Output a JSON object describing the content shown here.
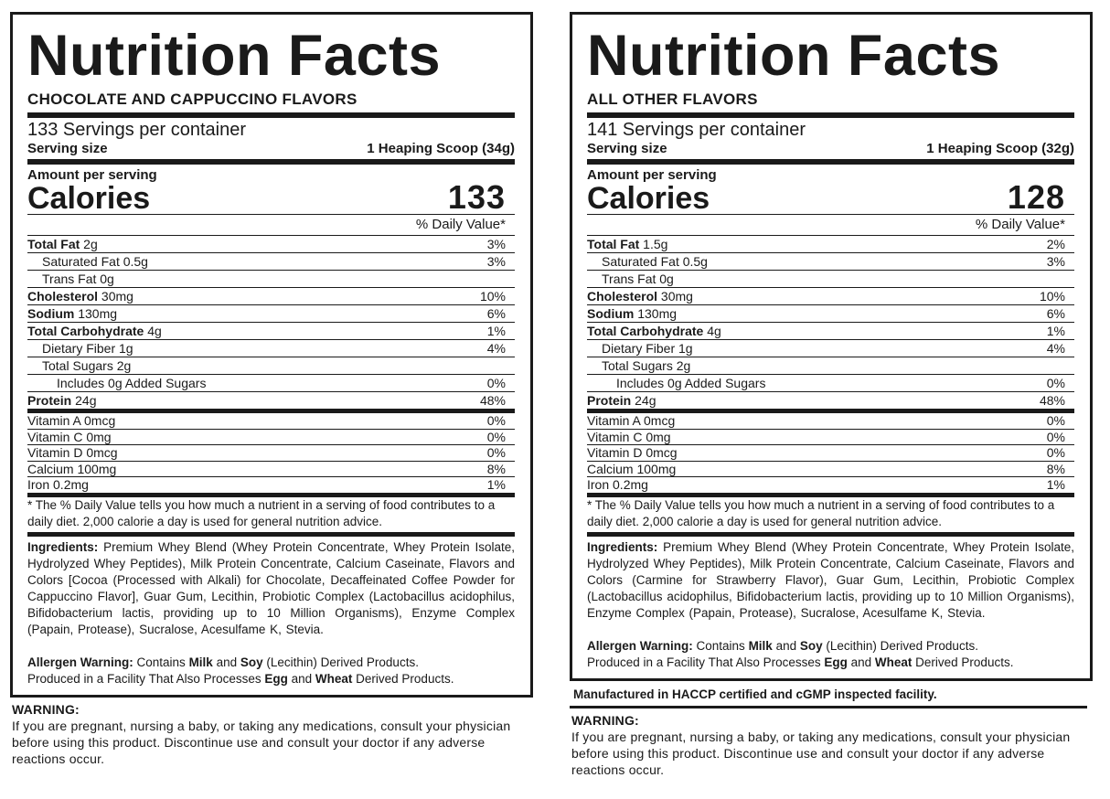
{
  "panels": [
    {
      "title": "Nutrition Facts",
      "flavor": "CHOCOLATE AND CAPPUCCINO FLAVORS",
      "servings": "133 Servings per container",
      "serving_size_label": "Serving size",
      "serving_size_value": "1 Heaping Scoop (34g)",
      "amount_label": "Amount per serving",
      "calories_label": "Calories",
      "calories_value": "133",
      "dv_header": "% Daily Value*",
      "nutrients": [
        {
          "bold": "Total Fat",
          "rest": " 2g",
          "dv": "3%",
          "indent": 0
        },
        {
          "bold": "",
          "rest": "Saturated Fat 0.5g",
          "dv": "3%",
          "indent": 1
        },
        {
          "bold": "",
          "rest": "Trans Fat 0g",
          "dv": "",
          "indent": 1
        },
        {
          "bold": "Cholesterol",
          "rest": " 30mg",
          "dv": "10%",
          "indent": 0
        },
        {
          "bold": "Sodium",
          "rest": " 130mg",
          "dv": "6%",
          "indent": 0
        },
        {
          "bold": "Total Carbohydrate",
          "rest": " 4g",
          "dv": "1%",
          "indent": 0
        },
        {
          "bold": "",
          "rest": "Dietary Fiber 1g",
          "dv": "4%",
          "indent": 1
        },
        {
          "bold": "",
          "rest": "Total Sugars 2g",
          "dv": "",
          "indent": 1
        },
        {
          "bold": "",
          "rest": "Includes 0g Added Sugars",
          "dv": "0%",
          "indent": 2
        },
        {
          "bold": "Protein",
          "rest": " 24g",
          "dv": "48%",
          "indent": 0
        }
      ],
      "vitamins": [
        {
          "label": "Vitamin A 0mcg",
          "dv": "0%"
        },
        {
          "label": "Vitamin C 0mg",
          "dv": "0%"
        },
        {
          "label": "Vitamin D 0mcg",
          "dv": "0%"
        },
        {
          "label": "Calcium 100mg",
          "dv": "8%"
        },
        {
          "label": "Iron 0.2mg",
          "dv": "1%"
        }
      ],
      "footnote": "* The % Daily Value tells you how much a nutrient in a serving of food contributes to a daily diet. 2,000 calorie a day is used for general nutrition advice.",
      "ingredients_label": "Ingredients:",
      "ingredients": " Premium Whey Blend (Whey Protein Concentrate, Whey Protein Isolate, Hydrolyzed Whey Peptides), Milk Protein Concentrate, Calcium Caseinate, Flavors and Colors [Cocoa (Processed with Alkali) for Chocolate, Decaffeinated Coffee Powder for Cappuccino Flavor], Guar Gum, Lecithin, Probiotic Complex (Lactobacillus acidophilus, Bifidobacterium lactis, providing up to 10 Million Organisms), Enzyme Complex (Papain, Protease), Sucralose, Acesulfame K, Stevia.",
      "allergen": {
        "label": "Allergen Warning:",
        "t1": " Contains ",
        "milk": "Milk",
        "t2": " and ",
        "soy": "Soy",
        "t3": " (Lecithin) Derived Products.",
        "t4": "Produced in a Facility That Also Processes ",
        "egg": "Egg",
        "t5": " and ",
        "wheat": "Wheat",
        "t6": " Derived Products."
      },
      "manufactured": "",
      "warning_title": "WARNING:",
      "warning_text": "If you are pregnant, nursing a baby, or taking any medications, consult your physician before using this product. Discontinue use and consult your doctor if any adverse reactions occur."
    },
    {
      "title": "Nutrition Facts",
      "flavor": "ALL OTHER FLAVORS",
      "servings": "141 Servings per container",
      "serving_size_label": "Serving size",
      "serving_size_value": "1 Heaping Scoop (32g)",
      "amount_label": "Amount per serving",
      "calories_label": "Calories",
      "calories_value": "128",
      "dv_header": "% Daily Value*",
      "nutrients": [
        {
          "bold": "Total Fat",
          "rest": " 1.5g",
          "dv": "2%",
          "indent": 0
        },
        {
          "bold": "",
          "rest": "Saturated Fat 0.5g",
          "dv": "3%",
          "indent": 1
        },
        {
          "bold": "",
          "rest": "Trans Fat 0g",
          "dv": "",
          "indent": 1
        },
        {
          "bold": "Cholesterol",
          "rest": " 30mg",
          "dv": "10%",
          "indent": 0
        },
        {
          "bold": "Sodium",
          "rest": " 130mg",
          "dv": "6%",
          "indent": 0
        },
        {
          "bold": "Total Carbohydrate",
          "rest": " 4g",
          "dv": "1%",
          "indent": 0
        },
        {
          "bold": "",
          "rest": "Dietary Fiber 1g",
          "dv": "4%",
          "indent": 1
        },
        {
          "bold": "",
          "rest": "Total Sugars 2g",
          "dv": "",
          "indent": 1
        },
        {
          "bold": "",
          "rest": "Includes 0g Added Sugars",
          "dv": "0%",
          "indent": 2
        },
        {
          "bold": "Protein",
          "rest": " 24g",
          "dv": "48%",
          "indent": 0
        }
      ],
      "vitamins": [
        {
          "label": "Vitamin A 0mcg",
          "dv": "0%"
        },
        {
          "label": "Vitamin C 0mg",
          "dv": "0%"
        },
        {
          "label": "Vitamin D 0mcg",
          "dv": "0%"
        },
        {
          "label": "Calcium 100mg",
          "dv": "8%"
        },
        {
          "label": "Iron 0.2mg",
          "dv": "1%"
        }
      ],
      "footnote": "* The % Daily Value tells you how much a nutrient in a serving of food contributes to a daily diet. 2,000 calorie a day is used for general nutrition advice.",
      "ingredients_label": "Ingredients:",
      "ingredients": " Premium Whey Blend (Whey Protein Concentrate, Whey Protein Isolate, Hydrolyzed Whey Peptides), Milk Protein Concentrate, Calcium Caseinate, Flavors and Colors (Carmine for Strawberry Flavor), Guar Gum, Lecithin, Probiotic Complex (Lactobacillus acidophilus, Bifidobacterium lactis, providing up to 10 Million Organisms), Enzyme Complex (Papain, Protease), Sucralose, Acesulfame K, Stevia.",
      "allergen": {
        "label": "Allergen Warning:",
        "t1": " Contains ",
        "milk": "Milk",
        "t2": " and ",
        "soy": "Soy",
        "t3": " (Lecithin) Derived Products.",
        "t4": "Produced in a Facility That Also Processes ",
        "egg": "Egg",
        "t5": " and ",
        "wheat": "Wheat",
        "t6": " Derived Products."
      },
      "manufactured": "Manufactured in HACCP certified and cGMP inspected facility.",
      "warning_title": "WARNING:",
      "warning_text": "If you are pregnant, nursing a baby, or taking any medications, consult your physician before using this product. Discontinue use and consult your doctor if any adverse reactions occur."
    }
  ]
}
